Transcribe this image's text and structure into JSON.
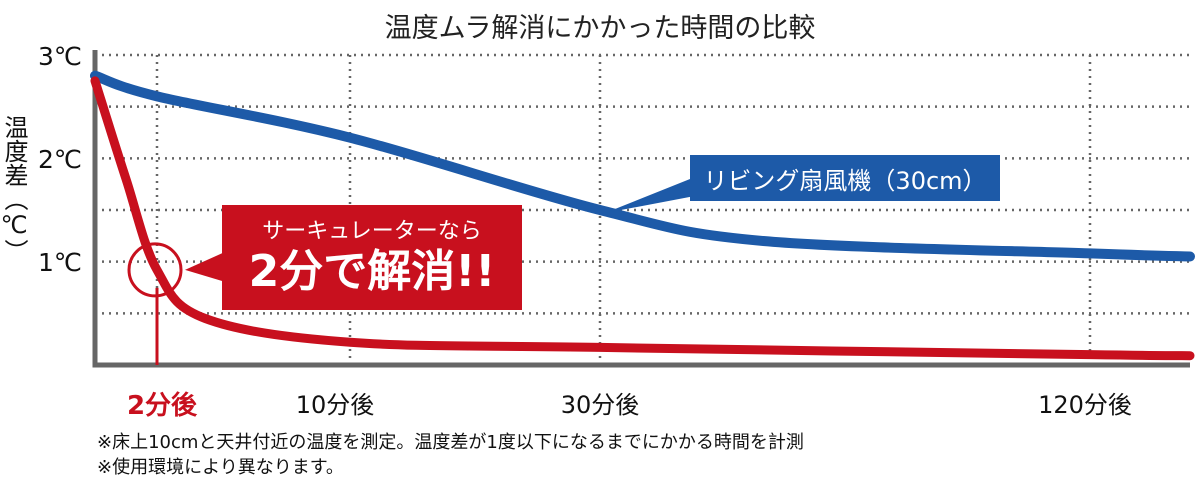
{
  "chart_data": {
    "type": "line",
    "title": "温度ムラ解消にかかった時間の比較",
    "ylabel": "温度差（℃）",
    "ylim": [
      0,
      3
    ],
    "yticks": [
      "1℃",
      "2℃",
      "3℃"
    ],
    "xticks": [
      {
        "minutes": 2,
        "label": "2分後"
      },
      {
        "minutes": 10,
        "label": "10分後"
      },
      {
        "minutes": 30,
        "label": "30分後"
      },
      {
        "minutes": 120,
        "label": "120分後"
      }
    ],
    "grid": true,
    "series": [
      {
        "name": "リビング扇風機（30cm）",
        "color": "#1d5aa8",
        "x": [
          0,
          2,
          10,
          30,
          60,
          120,
          140
        ],
        "y": [
          2.8,
          2.6,
          2.2,
          1.5,
          1.2,
          1.08,
          1.05
        ]
      },
      {
        "name": "サーキュレーター",
        "color": "#c8101e",
        "x": [
          0,
          1,
          2,
          4,
          10,
          30,
          120,
          140
        ],
        "y": [
          2.75,
          1.8,
          0.92,
          0.45,
          0.22,
          0.17,
          0.1,
          0.09
        ]
      }
    ],
    "annotations": {
      "blue": "リビング扇風機（30cm）",
      "red_line1": "サーキュレーターなら",
      "red_line2": "2分で解消!!"
    }
  },
  "notes": [
    "※床上10cmと天井付近の温度を測定。温度差が1度以下になるまでにかかる時間を計測",
    "※使用環境により異なります。"
  ]
}
